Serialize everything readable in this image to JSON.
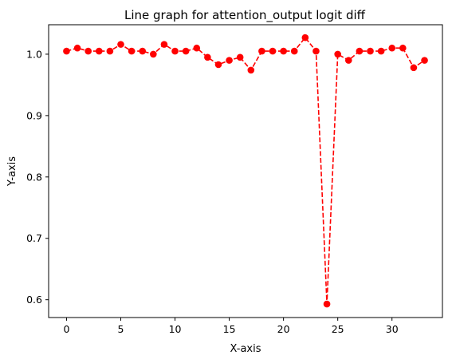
{
  "chart_data": {
    "type": "line",
    "title": "Line graph for attention_output logit diff",
    "xlabel": "X-axis",
    "ylabel": "Y-axis",
    "xlim": [
      -1.65,
      34.65
    ],
    "ylim": [
      0.571,
      1.048
    ],
    "x_ticks": [
      0,
      5,
      10,
      15,
      20,
      25,
      30
    ],
    "y_ticks": [
      0.6,
      0.7,
      0.8,
      0.9,
      1.0
    ],
    "x_tick_labels": [
      "0",
      "5",
      "10",
      "15",
      "20",
      "25",
      "30"
    ],
    "y_tick_labels": [
      "0.6",
      "0.7",
      "0.8",
      "0.9",
      "1.0"
    ],
    "grid": false,
    "legend": "none",
    "series": [
      {
        "color": "#ff0000",
        "line_style": "dashed",
        "marker": "circle",
        "x": [
          0,
          1,
          2,
          3,
          4,
          5,
          6,
          7,
          8,
          9,
          10,
          11,
          12,
          13,
          14,
          15,
          16,
          17,
          18,
          19,
          20,
          21,
          22,
          23,
          24,
          25,
          26,
          27,
          28,
          29,
          30,
          31,
          32,
          33
        ],
        "values": [
          1.005,
          1.01,
          1.005,
          1.005,
          1.005,
          1.016,
          1.005,
          1.005,
          1.0,
          1.016,
          1.005,
          1.005,
          1.01,
          0.995,
          0.983,
          0.99,
          0.995,
          0.974,
          1.005,
          1.005,
          1.005,
          1.005,
          1.027,
          1.005,
          0.593,
          1.0,
          0.99,
          1.005,
          1.005,
          1.005,
          1.01,
          1.01,
          0.978,
          0.99
        ]
      }
    ]
  }
}
